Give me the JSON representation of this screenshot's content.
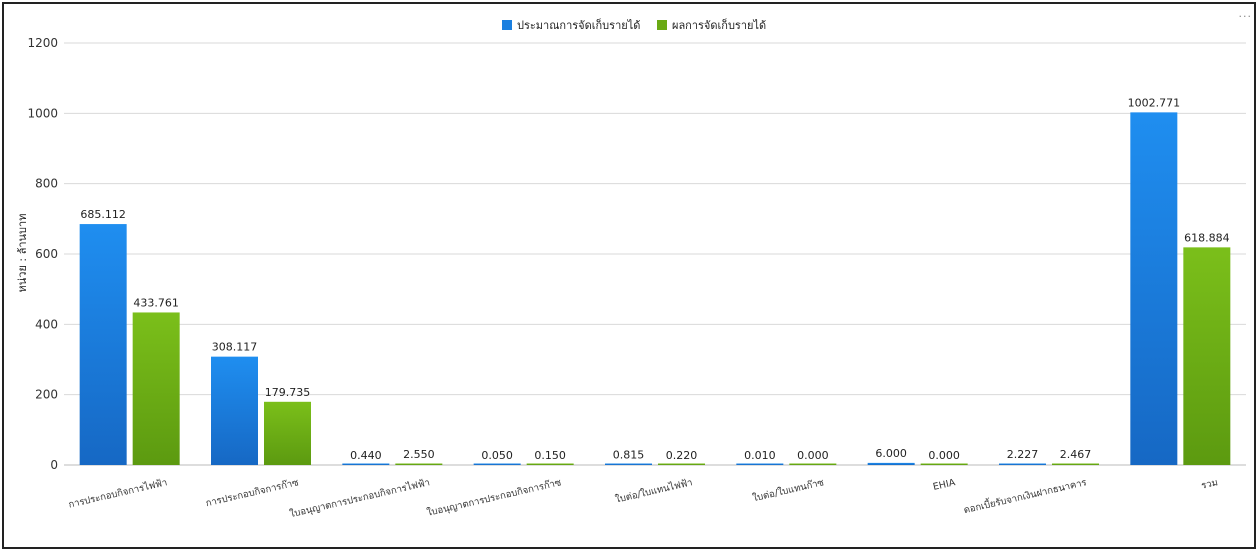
{
  "chart_data": {
    "type": "bar",
    "ylabel": "หน่วย : ล้านบาท",
    "ylim": [
      0,
      1200
    ],
    "yticks": [
      0,
      200,
      400,
      600,
      800,
      1000,
      1200
    ],
    "grid": true,
    "legend_position": "top-center",
    "categories": [
      "การประกอบกิจการไฟฟ้า",
      "การประกอบกิจการก๊าซ",
      "ใบอนุญาตการประกอบกิจการไฟฟ้า",
      "ใบอนุญาตการประกอบกิจการก๊าซ",
      "ใบต่อ/ใบแทนไฟฟ้า",
      "ใบต่อ/ใบแทนก๊าซ",
      "EHIA",
      "ดอกเบี้ยรับจากเงินฝากธนาคาร",
      "รวม"
    ],
    "series": [
      {
        "name": "ประมาณการจัดเก็บรายได้",
        "color": "#1a7fe0",
        "values": [
          685.112,
          308.117,
          0.44,
          0.05,
          0.815,
          0.01,
          6.0,
          2.227,
          1002.771
        ],
        "labels": [
          "685.112",
          "308.117",
          "0.440",
          "0.050",
          "0.815",
          "0.010",
          "6.000",
          "2.227",
          "1002.771"
        ]
      },
      {
        "name": "ผลการจัดเก็บรายได้",
        "color": "#6aaa14",
        "values": [
          433.761,
          179.735,
          2.55,
          0.15,
          0.22,
          0.0,
          0.0,
          2.467,
          618.884
        ],
        "labels": [
          "433.761",
          "179.735",
          "2.550",
          "0.150",
          "0.220",
          "0.000",
          "0.000",
          "2.467",
          "618.884"
        ]
      }
    ]
  },
  "ui": {
    "more_icon": "more-dots-icon",
    "more_glyph": "···"
  }
}
